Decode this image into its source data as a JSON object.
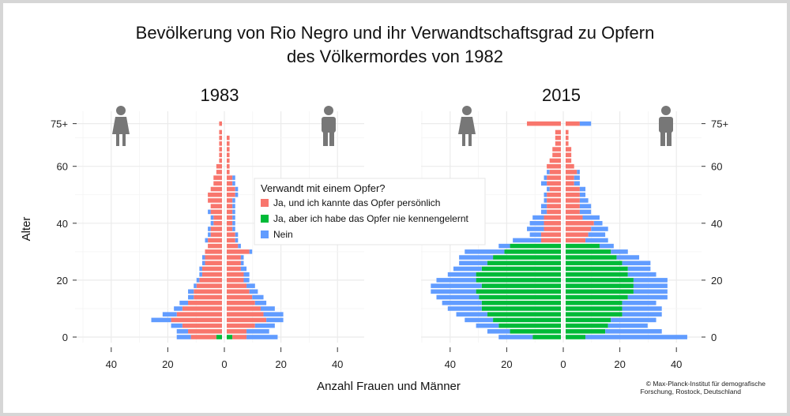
{
  "chart_data": {
    "type": "population-pyramid",
    "title": [
      "Bevölkerung von Rio Negro und ihr Verwandtschaftsgrad zu Opfern",
      "des Völkermordes von 1982"
    ],
    "ylabel": "Alter",
    "xlabel": "Anzahl Frauen und Männer",
    "y_ticks": [
      "0",
      "20",
      "40",
      "60",
      "75+"
    ],
    "y_tick_values": [
      0,
      20,
      40,
      60,
      75
    ],
    "x_ticks": [
      "40",
      "20",
      "0",
      "20",
      "40"
    ],
    "x_tick_values": [
      -40,
      -20,
      0,
      20,
      40
    ],
    "xlim": [
      -50,
      50
    ],
    "ylim": [
      -1,
      77
    ],
    "grid": true,
    "legend": {
      "title": "Verwandt mit einem Opfer?",
      "placement": "inside-top-left-panel-right",
      "entries": [
        {
          "key": "ja_kannte",
          "label": "Ja, und ich kannte das Opfer persönlich",
          "color": "#f8766d"
        },
        {
          "key": "ja_nie",
          "label": "Ja, aber ich habe das Opfer nie kennengelernt",
          "color": "#00ba38"
        },
        {
          "key": "nein",
          "label": "Nein",
          "color": "#619cff"
        }
      ]
    },
    "credit": [
      "© Max-Planck-Institut für demografische",
      "Forschung, Rostock, Deutschland"
    ],
    "icons": [
      "woman-icon",
      "man-icon"
    ],
    "panels": [
      {
        "title": "1983",
        "ages": [
          0,
          2,
          4,
          6,
          8,
          10,
          12,
          14,
          16,
          18,
          20,
          22,
          24,
          26,
          28,
          30,
          32,
          34,
          36,
          38,
          40,
          42,
          44,
          46,
          48,
          50,
          52,
          54,
          56,
          58,
          60,
          62,
          64,
          66,
          68,
          70,
          72,
          75
        ],
        "women": {
          "ja_kannte": [
            9,
            12,
            14,
            18,
            16,
            14,
            12,
            10,
            10,
            9,
            8,
            7,
            7,
            6,
            6,
            6,
            5,
            5,
            4,
            4,
            3,
            3,
            4,
            4,
            5,
            5,
            4,
            3,
            3,
            2,
            2,
            1,
            1,
            1,
            1,
            1,
            1,
            1
          ],
          "ja_nie": [
            2,
            0,
            0,
            0,
            0,
            0,
            0,
            0,
            0,
            0,
            0,
            0,
            0,
            0,
            0,
            0,
            0,
            0,
            0,
            0,
            0,
            0,
            0,
            0,
            0,
            0,
            0,
            0,
            0,
            0,
            0,
            0,
            0,
            0,
            0,
            0,
            0,
            0
          ],
          "nein": [
            5,
            4,
            4,
            7,
            5,
            3,
            3,
            2,
            2,
            1,
            1,
            1,
            1,
            1,
            1,
            0,
            0,
            1,
            1,
            1,
            1,
            1,
            1,
            0,
            0,
            0,
            0,
            0,
            0,
            0,
            0,
            0,
            0,
            0,
            0,
            0,
            0,
            0
          ]
        },
        "men": {
          "ja_kannte": [
            5,
            7,
            10,
            14,
            13,
            12,
            10,
            9,
            8,
            7,
            6,
            6,
            5,
            5,
            5,
            8,
            4,
            3,
            3,
            2,
            2,
            2,
            2,
            2,
            2,
            3,
            3,
            2,
            2,
            1,
            1,
            1,
            1,
            1,
            1,
            1,
            0,
            0
          ],
          "ja_nie": [
            2,
            0,
            0,
            0,
            0,
            0,
            0,
            0,
            0,
            0,
            0,
            0,
            0,
            0,
            0,
            0,
            0,
            0,
            0,
            0,
            0,
            0,
            0,
            0,
            0,
            0,
            0,
            0,
            0,
            0,
            0,
            0,
            0,
            0,
            0,
            0,
            0,
            0
          ],
          "nein": [
            11,
            8,
            7,
            6,
            7,
            5,
            4,
            4,
            3,
            3,
            2,
            2,
            2,
            1,
            1,
            1,
            1,
            1,
            1,
            1,
            1,
            1,
            1,
            1,
            1,
            1,
            1,
            1,
            1,
            0,
            0,
            0,
            0,
            0,
            0,
            0,
            0,
            0
          ]
        }
      },
      {
        "title": "2015",
        "ages": [
          0,
          2,
          4,
          6,
          8,
          10,
          12,
          14,
          16,
          18,
          20,
          22,
          24,
          26,
          28,
          30,
          32,
          34,
          36,
          38,
          40,
          42,
          44,
          46,
          48,
          50,
          52,
          54,
          56,
          58,
          60,
          62,
          64,
          66,
          68,
          70,
          72,
          75
        ],
        "women": {
          "ja_kannte": [
            0,
            0,
            0,
            0,
            0,
            0,
            0,
            0,
            0,
            0,
            0,
            0,
            0,
            0,
            0,
            0,
            0,
            7,
            7,
            6,
            6,
            6,
            5,
            5,
            5,
            5,
            4,
            5,
            5,
            4,
            5,
            4,
            3,
            3,
            2,
            2,
            2,
            12
          ],
          "ja_nie": [
            10,
            18,
            22,
            24,
            26,
            28,
            28,
            29,
            30,
            28,
            30,
            30,
            28,
            26,
            24,
            20,
            18,
            0,
            0,
            0,
            0,
            0,
            0,
            0,
            0,
            0,
            0,
            0,
            0,
            0,
            0,
            0,
            0,
            0,
            0,
            0,
            0,
            0
          ],
          "nein": [
            12,
            8,
            8,
            10,
            11,
            12,
            14,
            15,
            16,
            18,
            14,
            10,
            10,
            10,
            12,
            14,
            4,
            10,
            4,
            6,
            5,
            4,
            2,
            2,
            1,
            1,
            1,
            2,
            1,
            1,
            0,
            0,
            0,
            0,
            0,
            0,
            0,
            0
          ]
        },
        "men": {
          "ja_kannte": [
            0,
            0,
            0,
            0,
            0,
            0,
            0,
            0,
            0,
            0,
            0,
            0,
            0,
            0,
            0,
            0,
            0,
            7,
            8,
            9,
            10,
            6,
            5,
            5,
            5,
            5,
            5,
            3,
            3,
            4,
            3,
            2,
            2,
            2,
            1,
            1,
            1,
            5
          ],
          "ja_nie": [
            7,
            14,
            15,
            16,
            20,
            20,
            20,
            22,
            24,
            24,
            24,
            22,
            22,
            20,
            18,
            16,
            12,
            0,
            0,
            0,
            0,
            0,
            0,
            0,
            0,
            0,
            0,
            0,
            0,
            0,
            0,
            0,
            0,
            0,
            0,
            0,
            0,
            0
          ],
          "nein": [
            36,
            20,
            14,
            16,
            14,
            14,
            12,
            14,
            12,
            12,
            12,
            10,
            8,
            10,
            8,
            6,
            5,
            8,
            6,
            6,
            3,
            6,
            4,
            4,
            3,
            2,
            2,
            2,
            2,
            1,
            0,
            0,
            0,
            0,
            0,
            0,
            0,
            4
          ]
        }
      }
    ]
  }
}
